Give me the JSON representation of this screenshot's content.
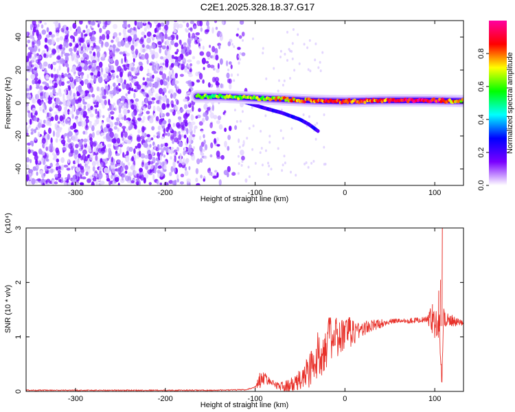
{
  "title": "C2E1.2025.328.18.37.G17",
  "chart_data": [
    {
      "type": "heatmap",
      "xlabel": "Height of straight line (km)",
      "ylabel": "Frequency (Hz)",
      "xlim": [
        -355,
        132
      ],
      "ylim": [
        -50,
        50
      ],
      "xticks": [
        -300,
        -200,
        -100,
        0,
        100
      ],
      "yticks": [
        -40,
        -20,
        0,
        20,
        40
      ],
      "colorbar": {
        "label": "Normalized spectral amplitude",
        "range": [
          0,
          1
        ],
        "ticks": [
          "0.0",
          "0.2",
          "0.4",
          "0.6",
          "0.8"
        ],
        "colors": [
          "#ffffff",
          "#7a00ff",
          "#0000ff",
          "#00ffff",
          "#00ff00",
          "#ffff00",
          "#ff0000",
          "#ff00a0"
        ]
      },
      "features": [
        {
          "name": "noise",
          "x_range": [
            -355,
            -110
          ],
          "freq_range": [
            -50,
            50
          ],
          "amplitude": 0.1
        },
        {
          "name": "carrier",
          "points": [
            [
              -165,
              4
            ],
            [
              -140,
              4
            ],
            [
              -120,
              3.5
            ],
            [
              -100,
              3
            ],
            [
              -80,
              2.5
            ],
            [
              -60,
              2
            ],
            [
              -40,
              1.5
            ],
            [
              -20,
              1.2
            ],
            [
              0,
              1
            ],
            [
              40,
              1.5
            ],
            [
              80,
              1.6
            ],
            [
              100,
              1.5
            ],
            [
              132,
              1.2
            ]
          ],
          "amplitude": [
            0.55,
            0.6,
            0.6,
            0.65,
            0.7,
            0.75,
            0.8,
            0.85,
            0.85,
            0.8,
            0.95,
            0.9,
            0.7
          ]
        },
        {
          "name": "lower-branch",
          "points": [
            [
              -120,
              2
            ],
            [
              -90,
              -3
            ],
            [
              -70,
              -6
            ],
            [
              -50,
              -10
            ],
            [
              -40,
              -13
            ],
            [
              -30,
              -17
            ]
          ],
          "amplitude": 0.2
        }
      ]
    },
    {
      "type": "line",
      "xlabel": "Height of straight line (km)",
      "ylabel": "SNR (10 * v/v)",
      "yscale_note": "(x10⁴)",
      "xlim": [
        -355,
        132
      ],
      "ylim": [
        0,
        3
      ],
      "xticks": [
        -300,
        -200,
        -100,
        0,
        100
      ],
      "yticks": [
        0,
        1,
        2,
        3
      ],
      "color": "#e8312a",
      "series": [
        {
          "points": [
            [
              -355,
              0.02
            ],
            [
              -300,
              0.02
            ],
            [
              -250,
              0.02
            ],
            [
              -200,
              0.02
            ],
            [
              -150,
              0.02
            ],
            [
              -110,
              0.03
            ],
            [
              -100,
              0.08
            ],
            [
              -95,
              0.2
            ],
            [
              -90,
              0.25
            ],
            [
              -80,
              0.15
            ],
            [
              -70,
              0.08
            ],
            [
              -60,
              0.1
            ],
            [
              -50,
              0.2
            ],
            [
              -40,
              0.4
            ],
            [
              -30,
              0.6
            ],
            [
              -25,
              0.8
            ],
            [
              -20,
              0.9
            ],
            [
              -15,
              1.0
            ],
            [
              -10,
              0.95
            ],
            [
              -5,
              1.0
            ],
            [
              0,
              1.05
            ],
            [
              10,
              1.1
            ],
            [
              20,
              1.15
            ],
            [
              30,
              1.2
            ],
            [
              40,
              1.25
            ],
            [
              50,
              1.28
            ],
            [
              60,
              1.3
            ],
            [
              70,
              1.3
            ],
            [
              80,
              1.31
            ],
            [
              90,
              1.32
            ],
            [
              100,
              1.33
            ],
            [
              105,
              1.25
            ],
            [
              108,
              0.2
            ],
            [
              110,
              1.4
            ],
            [
              115,
              1.3
            ],
            [
              120,
              1.27
            ],
            [
              132,
              1.25
            ]
          ],
          "noise": [
            [
              -355,
              0.01
            ],
            [
              -100,
              0.01
            ],
            [
              -95,
              0.15
            ],
            [
              -80,
              0.05
            ],
            [
              -50,
              0.2
            ],
            [
              -30,
              0.5
            ],
            [
              -10,
              0.4
            ],
            [
              0,
              0.35
            ],
            [
              20,
              0.15
            ],
            [
              50,
              0.05
            ],
            [
              90,
              0.05
            ],
            [
              100,
              0.35
            ],
            [
              110,
              0.2
            ],
            [
              132,
              0.04
            ]
          ],
          "spikes": [
            [
              97,
              1.6
            ],
            [
              104,
              1.85
            ],
            [
              106,
              2.05
            ],
            [
              108,
              3.0
            ]
          ]
        }
      ]
    }
  ]
}
